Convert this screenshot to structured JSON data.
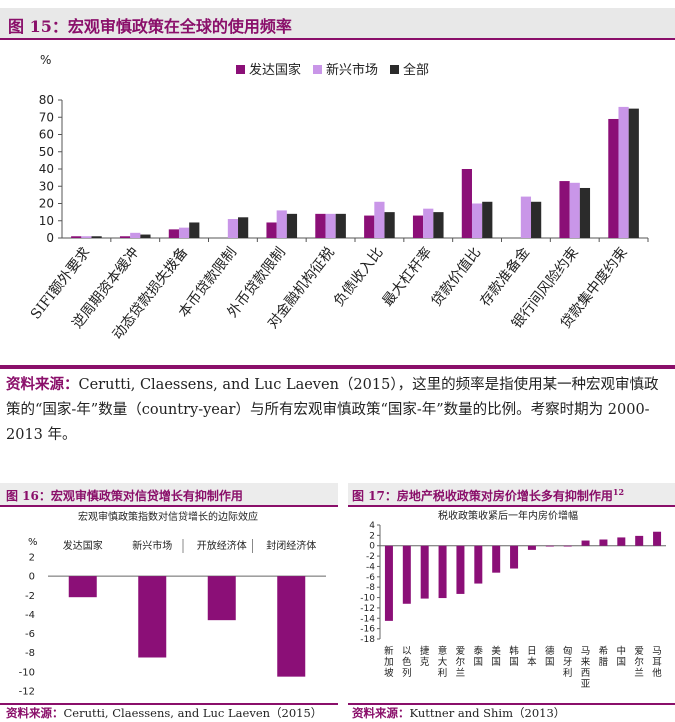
{
  "colors": {
    "accent": "#8a0f6a",
    "s1": "#8b0f77",
    "s2": "#c996e8",
    "s3": "#2b2b2b"
  },
  "fig15": {
    "title": "图 15：宏观审慎政策在全球的使用频率",
    "source_prefix": "资料来源：",
    "source_text": "Cerutti, Claessens, and Luc Laeven（2015），这里的频率是指使用某一种宏观审慎政策的“国家-年”数量（country-year）与所有宏观审慎政策“国家-年”数量的比例。考察时期为 2000-2013 年。"
  },
  "fig16": {
    "title": "图 16：宏观审慎政策对信贷增长有抑制作用",
    "source_prefix": "资料来源：",
    "source_text": "Cerutti, Claessens, and Luc Laeven（2015）"
  },
  "fig17": {
    "title": "图 17：房地产税收政策对房价增长多有抑制作用",
    "title_sup": "12",
    "source_prefix": "资料来源：",
    "source_text": "Kuttner and Shim（2013）"
  },
  "chart_data": [
    {
      "type": "bar",
      "ylabel": "%",
      "ylim": [
        0,
        80
      ],
      "yticks": [
        0,
        10,
        20,
        30,
        40,
        50,
        60,
        70,
        80
      ],
      "legend_position": "top",
      "categories": [
        "SIFI额外要求",
        "逆周期资本缓冲",
        "动态贷款损失拨备",
        "本币贷款限制",
        "外币贷款限制",
        "对金融机构征税",
        "负债收入比",
        "最大杠杆率",
        "贷款价值比",
        "存款准备金",
        "银行间风险约束",
        "贷款集中度约束"
      ],
      "series": [
        {
          "name": "发达国家",
          "values": [
            1,
            1,
            5,
            0,
            9,
            14,
            13,
            13,
            40,
            0,
            33,
            69
          ]
        },
        {
          "name": "新兴市场",
          "values": [
            1,
            3,
            6,
            11,
            16,
            14,
            21,
            17,
            20,
            24,
            32,
            76
          ]
        },
        {
          "name": "全部",
          "values": [
            1,
            2,
            9,
            12,
            14,
            14,
            15,
            15,
            21,
            21,
            29,
            75
          ]
        }
      ]
    },
    {
      "type": "bar",
      "title": "宏观审慎政策指数对信贷增长的边际效应",
      "ylabel": "%",
      "ylim": [
        -12,
        2
      ],
      "yticks": [
        2,
        0,
        -2,
        -4,
        -6,
        -8,
        -10,
        -12
      ],
      "categories": [
        "发达国家",
        "新兴市场",
        "开放经济体",
        "封闭经济体"
      ],
      "values": [
        -2.2,
        -8.5,
        -4.6,
        -10.5
      ]
    },
    {
      "type": "bar",
      "title": "税收政策收紧后一年内房价增幅",
      "ylim": [
        -18,
        4
      ],
      "yticks": [
        4,
        2,
        0,
        -2,
        -4,
        -6,
        -8,
        -10,
        -12,
        -14,
        -16,
        -18
      ],
      "categories": [
        "新加坡",
        "以色列",
        "捷克",
        "意大利",
        "爱尔兰",
        "泰国",
        "美国",
        "韩国",
        "日本",
        "德国",
        "匈牙利",
        "马来西亚",
        "希腊",
        "中国",
        "爱尔兰",
        "马耳他"
      ],
      "values": [
        -14.5,
        -11.2,
        -10.2,
        -10.1,
        -9.3,
        -7.3,
        -5.2,
        -4.4,
        -0.8,
        -0.1,
        -0.1,
        1.0,
        1.2,
        1.6,
        1.9,
        2.7
      ]
    }
  ]
}
